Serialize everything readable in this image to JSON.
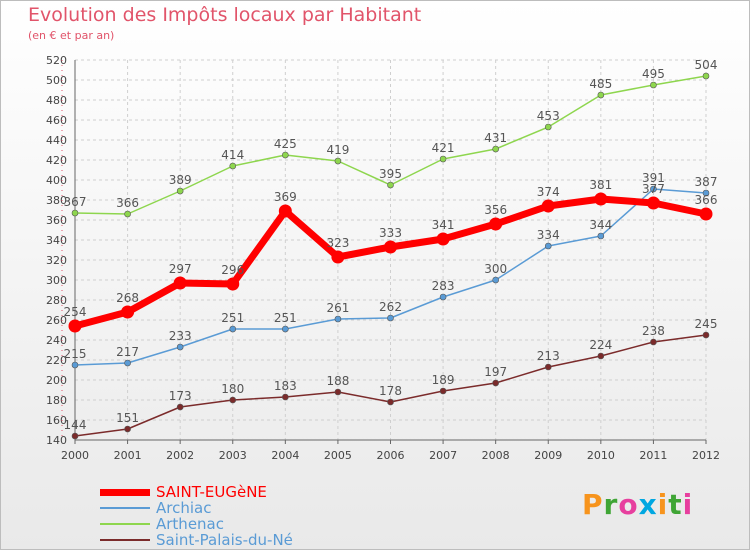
{
  "header": {
    "title": "Evolution des Impôts locaux par Habitant",
    "subtitle": "(en € et par an)"
  },
  "logo": {
    "text": "Proxiti",
    "letter_colors": [
      "#f7941d",
      "#3fa535",
      "#e73f9e",
      "#00a7e1",
      "#f7941d",
      "#3fa535",
      "#e73f9e"
    ]
  },
  "chart_data": {
    "type": "line",
    "title": "Evolution des Impôts locaux par Habitant",
    "subtitle": "(en € et par an)",
    "xlabel": "",
    "ylabel": "",
    "x": [
      "2000",
      "2001",
      "2002",
      "2003",
      "2004",
      "2005",
      "2006",
      "2007",
      "2008",
      "2009",
      "2010",
      "2011",
      "2012"
    ],
    "ylim": [
      140,
      520
    ],
    "yticks": [
      140,
      160,
      180,
      200,
      220,
      240,
      260,
      280,
      300,
      320,
      340,
      360,
      380,
      400,
      420,
      440,
      460,
      480,
      500,
      520
    ],
    "grid": true,
    "legend_position": "bottom-left",
    "series": [
      {
        "name": "SAINT-EUGèNE",
        "color": "#ff0000",
        "emphasis": true,
        "values": [
          254,
          268,
          297,
          296,
          369,
          323,
          333,
          341,
          356,
          374,
          381,
          377,
          366
        ],
        "labels": [
          "254",
          "268",
          "297",
          "296",
          "369",
          "323",
          "333",
          "341",
          "356",
          "374",
          "381",
          "377",
          "366"
        ]
      },
      {
        "name": "Archiac",
        "color": "#5a9bd5",
        "emphasis": false,
        "values": [
          215,
          217,
          233,
          251,
          251,
          261,
          262,
          283,
          300,
          334,
          344,
          391,
          387
        ],
        "labels": [
          "215",
          "217",
          "233",
          "251",
          "251",
          "261",
          "262",
          "283",
          "300",
          "334",
          "344",
          "391",
          "387"
        ]
      },
      {
        "name": "Arthenac",
        "color": "#8ed64e",
        "emphasis": false,
        "values": [
          367,
          366,
          389,
          414,
          425,
          419,
          395,
          421,
          431,
          453,
          485,
          495,
          504
        ],
        "labels": [
          "367",
          "366",
          "389",
          "414",
          "425",
          "419",
          "395",
          "421",
          "431",
          "453",
          "485",
          "495",
          "504"
        ]
      },
      {
        "name": "Saint-Palais-du-Né",
        "color": "#7b2b2b",
        "emphasis": false,
        "values": [
          144,
          151,
          173,
          180,
          183,
          188,
          178,
          189,
          197,
          213,
          224,
          238,
          245
        ],
        "labels": [
          "144",
          "151",
          "173",
          "180",
          "183",
          "188",
          "178",
          "189",
          "197",
          "213",
          "224",
          "238",
          "245"
        ]
      }
    ]
  }
}
